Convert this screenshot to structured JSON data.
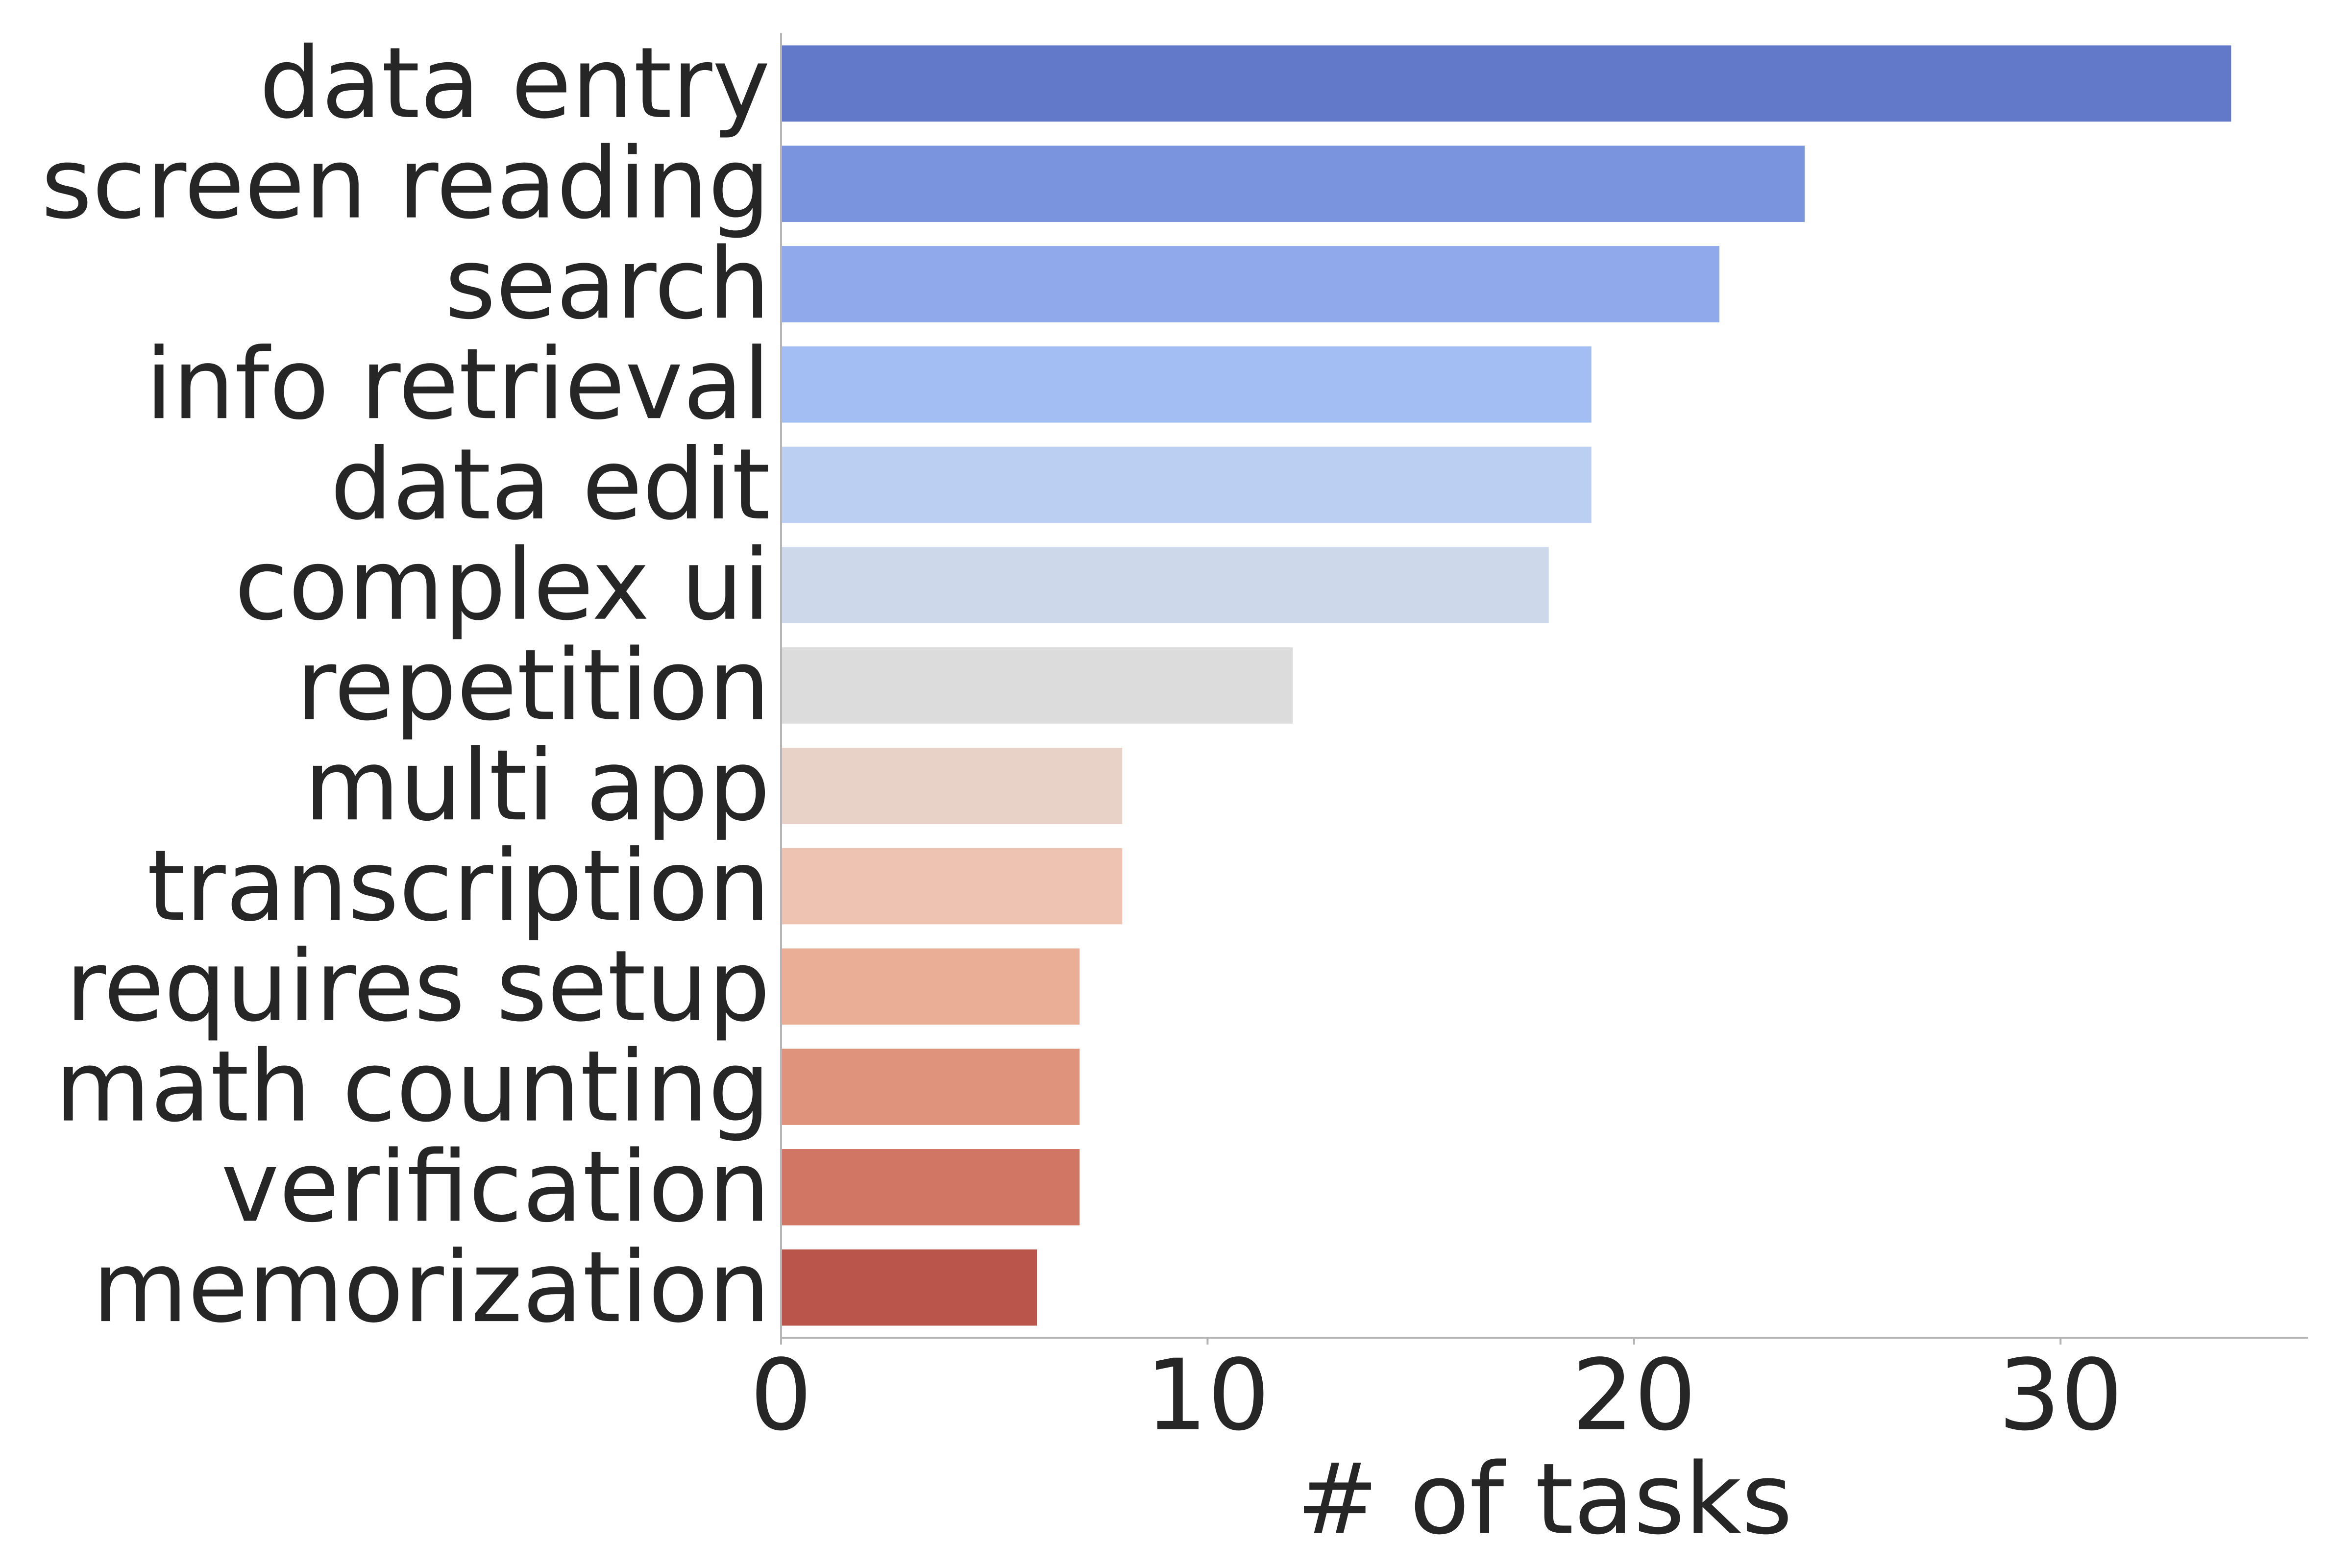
{
  "chart_data": {
    "type": "bar",
    "orientation": "horizontal",
    "title": "",
    "xlabel": "# of tasks",
    "ylabel": "",
    "categories": [
      "data entry",
      "screen reading",
      "search",
      "info retrieval",
      "data edit",
      "complex ui",
      "repetition",
      "multi app",
      "transcription",
      "requires setup",
      "math counting",
      "verification",
      "memorization"
    ],
    "values": [
      34,
      24,
      22,
      19,
      19,
      18,
      12,
      8,
      8,
      7,
      7,
      7,
      6
    ],
    "colors": [
      "#6279CA",
      "#7A95DE",
      "#8FA9EA",
      "#A2BEF2",
      "#BBCFF2",
      "#CDD8EA",
      "#DCDCDC",
      "#E8D2C8",
      "#EEC3B2",
      "#EAAE96",
      "#E0937C",
      "#D17665",
      "#BA554C"
    ],
    "xlim": [
      0,
      35.8
    ],
    "xticks": [
      0,
      10,
      20,
      30
    ],
    "grid": false,
    "legend": "none"
  }
}
